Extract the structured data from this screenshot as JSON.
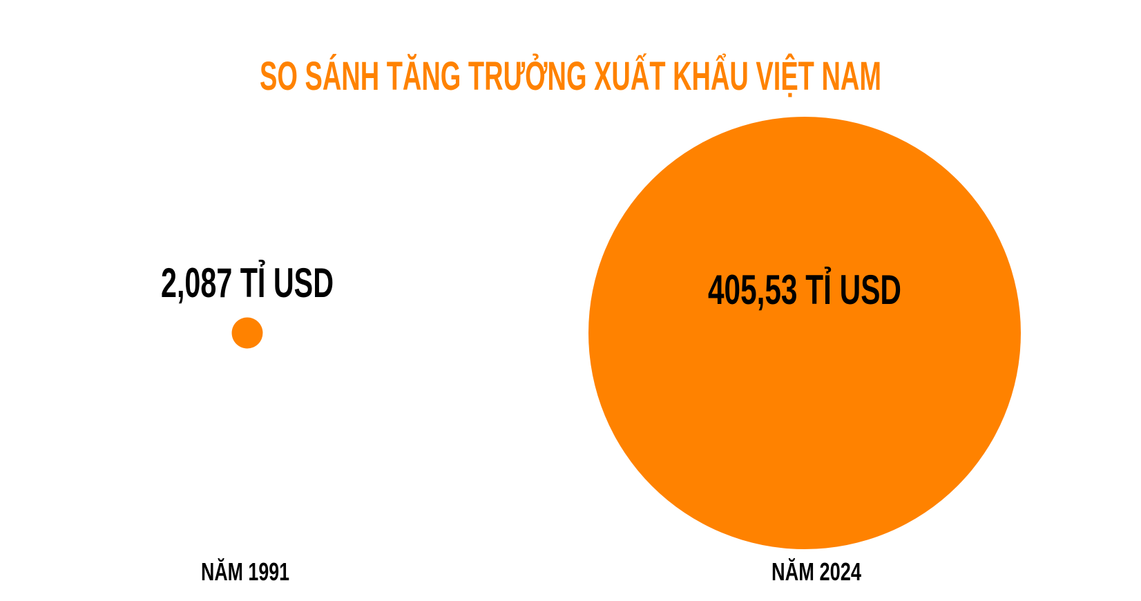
{
  "chart_data": {
    "type": "bubble",
    "title": "SO SÁNH TĂNG TRƯỞNG XUẤT KHẨU VIỆT NAM",
    "categories": [
      "NĂM 1991",
      "NĂM 2024"
    ],
    "values": [
      2.087,
      405.53
    ],
    "value_labels": [
      "2,087 TỈ USD",
      "405,53 TỈ USD"
    ],
    "unit": "TỈ USD",
    "size_encoding": "area",
    "grid": false,
    "legend": "none"
  },
  "colors": {
    "accent": "#FF8200",
    "text": "#000000",
    "background": "#FFFFFF"
  }
}
